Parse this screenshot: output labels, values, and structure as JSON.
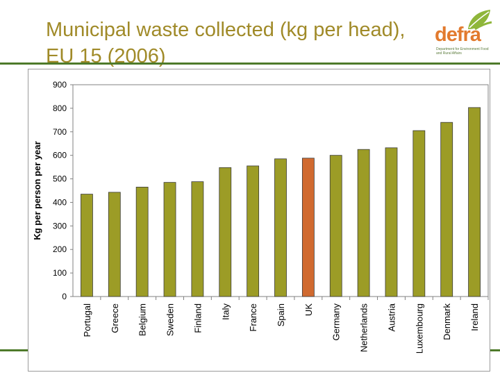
{
  "slide": {
    "title": "Municipal waste collected (kg per head), EU 15 (2006)"
  },
  "logo": {
    "wordmark": "defra",
    "tagline": "Department for Environment Food and Rural Affairs"
  },
  "colors": {
    "title": "#a08a28",
    "bar": "#9c9c26",
    "bar_highlight": "#d06a30",
    "rule": "#4e7a2a"
  },
  "chart_data": {
    "type": "bar",
    "title": "",
    "xlabel": "",
    "ylabel": "Kg per person per year",
    "ylim": [
      0,
      900
    ],
    "yticks": [
      0,
      100,
      200,
      300,
      400,
      500,
      600,
      700,
      800,
      900
    ],
    "grid": false,
    "highlight": "UK",
    "categories": [
      "Portugal",
      "Greece",
      "Belgium",
      "Sweden",
      "Finland",
      "Italy",
      "France",
      "Spain",
      "UK",
      "Germany",
      "Netherlands",
      "Austria",
      "Luxembourg",
      "Denmark",
      "Ireland"
    ],
    "values": [
      435,
      443,
      465,
      485,
      488,
      548,
      555,
      585,
      588,
      600,
      625,
      632,
      705,
      740,
      803
    ]
  }
}
